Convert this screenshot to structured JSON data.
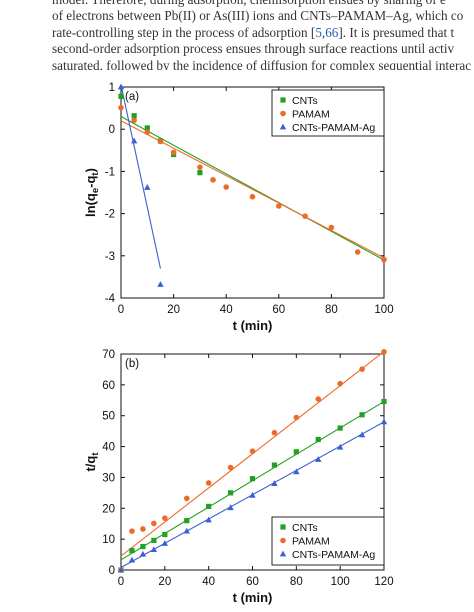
{
  "paper": {
    "line1": "model. Therefore, during adsorption, chemisorption ensues by sharing of e",
    "line2": "of electrons between Pb(II) or As(III) ions and CNTs–PAMAM–Ag, which co",
    "line3a": "rate-controlling step in the process of adsorption [",
    "cite1": "5",
    "comma": ",",
    "cite2": "66",
    "line3b": "]. It is presumed that t",
    "line4": "second-order adsorption process ensues through surface reactions until activ",
    "line5": "saturated, followed by the incidence of diffusion for complex sequential interac"
  },
  "colors": {
    "cnts": "#22a022",
    "pamam": "#ee6a2a",
    "ag": "#3a5fd6"
  },
  "chart_data": [
    {
      "type": "scatter",
      "panel_label": "(a)",
      "xlabel": "t (min)",
      "ylabel_main": "ln(q",
      "ylabel_sub1": "e",
      "ylabel_mid": "-q",
      "ylabel_sub2": "t",
      "ylabel_end": ")",
      "xlim": [
        0,
        100
      ],
      "ylim": [
        -4,
        1
      ],
      "xticks": [
        0,
        20,
        40,
        60,
        80,
        100
      ],
      "yticks": [
        -4,
        -3,
        -2,
        -1,
        0,
        1
      ],
      "grid": false,
      "legend_position": "top-right",
      "series": [
        {
          "name": "CNTs",
          "marker": "square",
          "x": [
            0,
            5,
            10,
            15,
            20,
            30
          ],
          "y": [
            0.78,
            0.32,
            0.03,
            -0.28,
            -0.6,
            -1.03
          ],
          "fit": {
            "x": [
              0,
              100
            ],
            "y": [
              0.3,
              -3.1
            ]
          }
        },
        {
          "name": "PAMAM",
          "marker": "circle",
          "x": [
            0,
            5,
            10,
            15,
            20,
            30,
            35,
            40,
            50,
            60,
            70,
            80,
            90,
            100
          ],
          "y": [
            0.51,
            0.21,
            -0.07,
            -0.29,
            -0.55,
            -0.9,
            -1.2,
            -1.37,
            -1.6,
            -1.82,
            -2.06,
            -2.33,
            -2.91,
            -3.09
          ],
          "fit": {
            "x": [
              0,
              100
            ],
            "y": [
              0.2,
              -3.05
            ]
          }
        },
        {
          "name": "CNTs-PAMAM-Ag",
          "marker": "triangle",
          "x": [
            0,
            5,
            10,
            15
          ],
          "y": [
            1.0,
            -0.28,
            -1.38,
            -3.68
          ],
          "fit": {
            "x": [
              0,
              15
            ],
            "y": [
              1.05,
              -3.3
            ]
          }
        }
      ]
    },
    {
      "type": "scatter",
      "panel_label": "(b)",
      "xlabel": "t (min)",
      "ylabel_main": "t/q",
      "ylabel_sub1": "t",
      "xlim": [
        0,
        120
      ],
      "ylim": [
        0,
        70
      ],
      "xticks": [
        0,
        20,
        40,
        60,
        80,
        100,
        120
      ],
      "yticks": [
        0,
        10,
        20,
        30,
        40,
        50,
        60,
        70
      ],
      "grid": false,
      "legend_position": "bottom-right",
      "series": [
        {
          "name": "CNTs",
          "marker": "square",
          "x": [
            0,
            5,
            10,
            15,
            20,
            30,
            40,
            50,
            60,
            70,
            80,
            90,
            100,
            110,
            120
          ],
          "y": [
            0,
            6.3,
            7.6,
            9.6,
            11.5,
            16,
            20.6,
            25,
            29.6,
            34,
            38.3,
            42.3,
            46,
            50.3,
            54.6
          ],
          "fit": {
            "x": [
              0,
              120
            ],
            "y": [
              3.3,
              54.6
            ]
          }
        },
        {
          "name": "PAMAM",
          "marker": "circle",
          "x": [
            0,
            5,
            10,
            15,
            20,
            30,
            40,
            50,
            60,
            70,
            80,
            90,
            100,
            110,
            120
          ],
          "y": [
            0,
            12.6,
            13.3,
            15.1,
            16.8,
            23.2,
            28.2,
            33.2,
            38.5,
            44.5,
            49.4,
            55.4,
            60.4,
            65.1,
            70.7
          ],
          "fit": {
            "x": [
              0,
              120
            ],
            "y": [
              4.5,
              70.8
            ]
          }
        },
        {
          "name": "CNTs-PAMAM-Ag",
          "marker": "triangle",
          "x": [
            0,
            5,
            10,
            15,
            20,
            30,
            40,
            50,
            60,
            70,
            80,
            90,
            100,
            110,
            120
          ],
          "y": [
            0,
            3.2,
            5.1,
            6.6,
            8.6,
            12.6,
            16.2,
            20.2,
            24.2,
            28,
            31.8,
            35.8,
            39.8,
            43.8,
            48
          ],
          "fit": {
            "x": [
              0,
              120
            ],
            "y": [
              0.8,
              48
            ]
          }
        }
      ]
    }
  ]
}
